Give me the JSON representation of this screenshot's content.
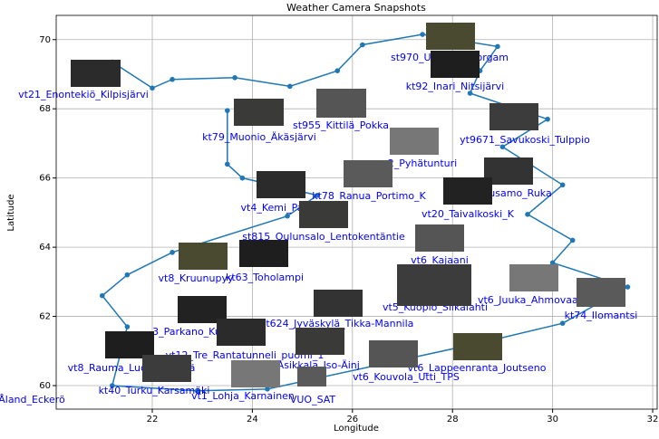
{
  "chart_data": {
    "type": "line",
    "title": "Weather Camera Snapshots",
    "x_label": "Longitude",
    "y_label": "Latitude",
    "series": [
      {
        "color": "#1f77b4",
        "x": [
          21.2,
          22.0,
          22.4,
          23.65,
          24.75,
          25.7,
          26.2,
          27.4,
          28.9,
          28.55,
          28.35,
          29.9,
          29.0,
          30.2,
          29.5,
          30.4,
          30.0,
          31.5,
          30.2,
          28.6,
          24.3,
          22.9,
          21.2,
          21.5,
          21.0,
          21.5,
          22.4,
          24.7,
          25.3,
          23.8,
          23.5,
          23.5
        ],
        "values": [
          69.35,
          68.6,
          68.85,
          68.9,
          68.65,
          69.1,
          69.85,
          70.15,
          69.8,
          69.1,
          68.45,
          67.7,
          66.9,
          65.8,
          64.95,
          64.2,
          63.55,
          62.85,
          61.8,
          61.25,
          59.9,
          59.85,
          60.0,
          61.7,
          62.6,
          63.2,
          63.85,
          64.9,
          65.5,
          66.0,
          66.4,
          67.95
        ]
      }
    ],
    "annotations": [
      "vt21_Enontekiö_Kilpisjärvi",
      "kt79_Muonio_Äkäsjärvi",
      "st955_Kittilä_Pokka",
      "st970_Utsjoki_Nuorgam",
      "kt92_Inari_Nitsijärvi",
      "yt9671_Savukoski_Tulppio",
      "2_Pyhätunturi",
      "kt78_Ranua_Portimo_K",
      "usamo_Ruka",
      "vt4_Kemi_Pa",
      "vt20_Taivalkoski_K",
      "st815_Oulunsalo_Lentokentäntie",
      "vt6_Kajaani",
      "vt8_Kruunupyy",
      "kt63_Toholampi",
      "vt5_Kuopio_Siikalahti",
      "vt6_Juuka_Ahmovaara",
      "kt74_Ilomantsi",
      "st624_Jyväskylä_Tikka-Mannila",
      "3_Parkano_Ku",
      "vt12_Tre_Rantatunneli_puomi_1",
      "4_Asikkala_Iso-Äinj",
      "vt8_Rauma_Luostarinkylä",
      "kt40_Turku_Karsamäki",
      "vt1_Lohja_Karnainen",
      "VUO_SAT",
      "vt6_Kouvola_Utti_TPS",
      "vt6_Lappeenranta_Joutseno",
      "Åland_Eckerö"
    ],
    "xlim": [
      20.08,
      32.09
    ],
    "ylim": [
      59.32,
      70.7
    ],
    "xticks": [
      22,
      24,
      26,
      28,
      30,
      32
    ],
    "yticks": [
      60,
      62,
      64,
      66,
      68,
      70
    ],
    "grid": true
  }
}
